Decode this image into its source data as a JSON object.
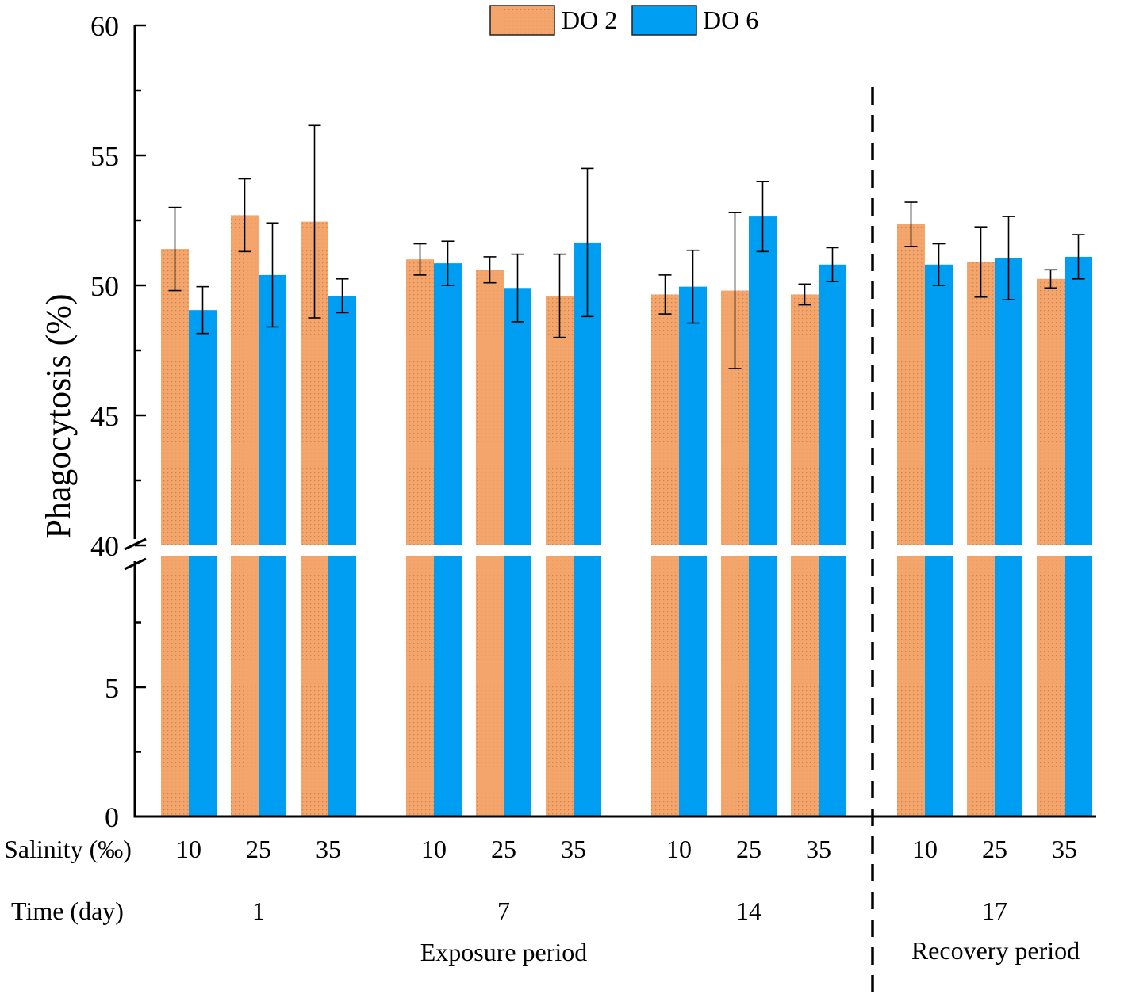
{
  "chart_data": {
    "type": "bar",
    "ylabel": "Phagocytosis (%)",
    "y_axis_break": [
      10,
      40
    ],
    "ylim_lower": [
      0,
      10
    ],
    "ylim_upper": [
      40,
      60
    ],
    "yticks_upper": [
      "40",
      "45",
      "50",
      "55",
      "60"
    ],
    "yticks_lower": [
      "0",
      "5"
    ],
    "legend": {
      "position": "top-center",
      "entries": [
        "DO 2",
        "DO 6"
      ]
    },
    "salinity_label": "Salinity (‰)",
    "time_label": "Time (day)",
    "groups": [
      {
        "time": "1",
        "salinities": [
          "10",
          "25",
          "35"
        ]
      },
      {
        "time": "7",
        "salinities": [
          "10",
          "25",
          "35"
        ]
      },
      {
        "time": "14",
        "salinities": [
          "10",
          "25",
          "35"
        ]
      },
      {
        "time": "17",
        "salinities": [
          "10",
          "25",
          "35"
        ]
      }
    ],
    "periods": [
      {
        "label": "Exposure period",
        "times": [
          "1",
          "7",
          "14"
        ]
      },
      {
        "label": "Recovery period",
        "times": [
          "17"
        ]
      }
    ],
    "series": [
      {
        "name": "DO 2",
        "color": "#f4a56b",
        "pattern": "dotted",
        "values": [
          51.4,
          52.7,
          52.45,
          51.0,
          50.6,
          49.6,
          49.65,
          49.8,
          49.65,
          52.35,
          50.9,
          50.25
        ],
        "errors": [
          1.6,
          1.4,
          3.7,
          0.6,
          0.5,
          1.6,
          0.75,
          3.0,
          0.4,
          0.85,
          1.35,
          0.35
        ]
      },
      {
        "name": "DO 6",
        "color": "#009ef3",
        "pattern": "solid",
        "values": [
          49.05,
          50.4,
          49.6,
          50.85,
          49.9,
          51.65,
          49.95,
          52.65,
          50.8,
          50.8,
          51.05,
          51.1
        ],
        "errors": [
          0.9,
          2.0,
          0.65,
          0.85,
          1.3,
          2.85,
          1.4,
          1.35,
          0.65,
          0.8,
          1.6,
          0.85
        ]
      }
    ]
  }
}
